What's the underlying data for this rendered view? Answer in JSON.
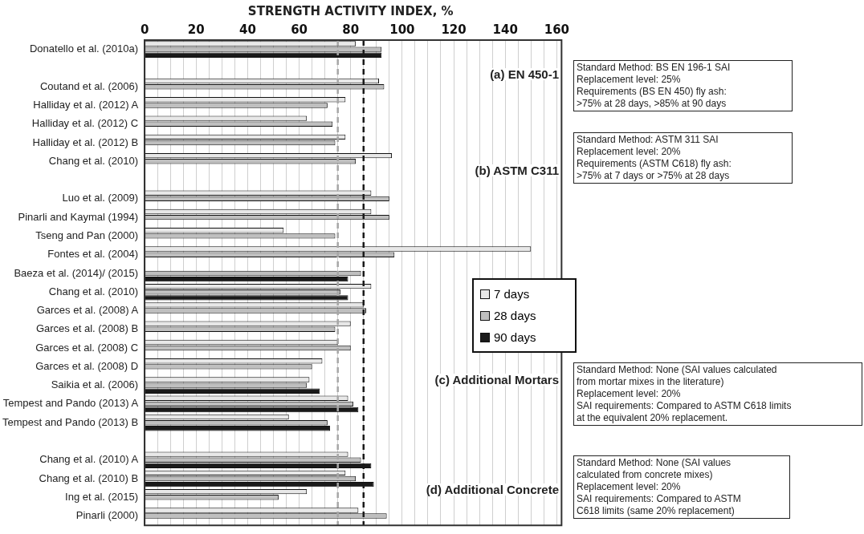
{
  "chart_data": {
    "type": "bar",
    "orientation": "horizontal",
    "xlabel": "STRENGTH ACTIVITY INDEX, %",
    "categories": [
      "Donatello et al. (2010a)",
      null,
      "Coutand et al. (2006)",
      "Halliday et al. (2012) A",
      "Halliday et al. (2012) C",
      "Halliday et al. (2012) B",
      "Chang et al. (2010)",
      null,
      "Luo et al. (2009)",
      "Pinarli and Kaymal (1994)",
      "Tseng and Pan (2000)",
      "Fontes et al. (2004)",
      "Baeza et al. (2014)/ (2015)",
      "Chang et al. (2010)",
      "Garces et al. (2008) A",
      "Garces et al. (2008) B",
      "Garces et al. (2008) C",
      "Garces et al. (2008) D",
      "Saikia et al. (2006)",
      "Tempest and Pando (2013) A",
      "Tempest and Pando (2013) B",
      null,
      "Chang et al. (2010) A",
      "Chang et al. (2010) B",
      "Ing et al. (2015)",
      "Pinarli (2000)"
    ],
    "series": [
      {
        "name": "7 days",
        "color": "#e8e8e8",
        "values": [
          82,
          null,
          91,
          78,
          63,
          78,
          96,
          null,
          88,
          88,
          54,
          150,
          null,
          88,
          85,
          80,
          75,
          69,
          64,
          79,
          56,
          null,
          79,
          78,
          63,
          83
        ]
      },
      {
        "name": "28 days",
        "color": "#bfbfbf",
        "values": [
          92,
          null,
          93,
          71,
          73,
          74,
          82,
          null,
          95,
          95,
          74,
          97,
          84,
          76,
          86,
          74,
          80,
          65,
          63,
          81,
          71,
          null,
          84,
          82,
          52,
          94
        ]
      },
      {
        "name": "90 days",
        "color": "#1a1a1a",
        "values": [
          92,
          null,
          null,
          null,
          null,
          null,
          null,
          null,
          null,
          null,
          null,
          null,
          79,
          79,
          null,
          null,
          null,
          null,
          68,
          83,
          72,
          null,
          88,
          89,
          null,
          null
        ]
      }
    ],
    "xlim": [
      0,
      160
    ],
    "xticks": [
      0,
      {
        "value": 5,
        "label": null
      },
      {
        "value": 10,
        "label": null
      },
      {
        "value": 15,
        "label": null
      },
      20,
      {
        "value": 25,
        "label": null
      },
      {
        "value": 30,
        "label": null
      },
      {
        "value": 35,
        "label": null
      },
      40,
      {
        "value": 45,
        "label": null
      },
      {
        "value": 50,
        "label": null
      },
      {
        "value": 55,
        "label": null
      },
      60,
      {
        "value": 65,
        "label": null
      },
      {
        "value": 70,
        "label": null
      },
      {
        "value": 75,
        "label": null
      },
      80,
      {
        "value": 85,
        "label": null
      },
      {
        "value": 90,
        "label": null
      },
      {
        "value": 95,
        "label": null
      },
      100,
      {
        "value": 105,
        "label": null
      },
      {
        "value": 110,
        "label": null
      },
      {
        "value": 115,
        "label": null
      },
      120,
      {
        "value": 125,
        "label": null
      },
      {
        "value": 130,
        "label": null
      },
      {
        "value": 135,
        "label": null
      },
      140,
      {
        "value": 145,
        "label": null
      },
      {
        "value": 150,
        "label": null
      },
      {
        "value": 155,
        "label": null
      },
      160
    ],
    "grid": "x",
    "legend": "right",
    "ref_lines": [
      {
        "axis": "x",
        "value": 75,
        "color": "#a6a6a6",
        "line_style": "dashed"
      },
      {
        "axis": "x",
        "value": 85,
        "color": "#1a1a1a",
        "line_style": "dashed"
      }
    ],
    "annotations": [
      "(a) EN 450-1",
      "(b) ASTM C311",
      "(c) Additional Mortars",
      "(d) Additional Concrete",
      "Standard Method: BS EN 196-1 SAI\nReplacement level: 25%\nRequirements (BS EN 450) fly ash:\n>75% at 28 days, >85% at 90 days",
      "Standard Method: ASTM 311 SAI\nReplacement level: 20%\nRequirements (ASTM C618) fly ash:\n>75% at 7 days or >75% at 28 days",
      "Standard Method: None (SAI values calculated\nfrom mortar mixes in the literature)\nReplacement level: 20%\nSAI requirements: Compared to ASTM C618 limits\nat the equivalent 20% replacement.",
      "Standard Method: None (SAI values\ncalculated from concrete mixes)\nReplacement level: 20%\nSAI requirements: Compared to ASTM\nC618 limits (same 20% replacement)"
    ]
  }
}
